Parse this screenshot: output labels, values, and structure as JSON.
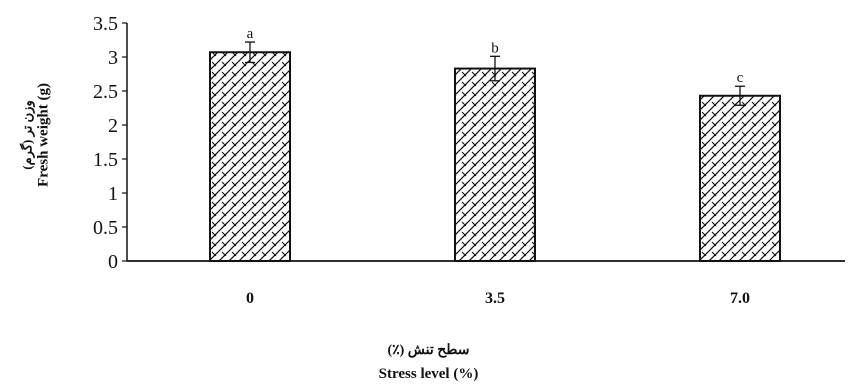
{
  "chart_data": {
    "type": "bar",
    "categories": [
      "0",
      "3.5",
      "7.0"
    ],
    "values": [
      3.07,
      2.83,
      2.43
    ],
    "errors": [
      0.15,
      0.18,
      0.14
    ],
    "letters": [
      "a",
      "b",
      "c"
    ],
    "ylim": [
      0,
      3.5
    ],
    "yticks": [
      "0",
      "0.5",
      "1",
      "1.5",
      "2",
      "2.5",
      "3",
      "3.5"
    ],
    "ylabel_fa": "وزن تر (گرم)",
    "ylabel_en": "Fresh weight (g)",
    "xlabel_fa": "سطح تنش (٪)",
    "xlabel_en": "Stress level (%)",
    "grid": false,
    "bar_fill": "crosshatch",
    "bar_color": "#111111"
  }
}
